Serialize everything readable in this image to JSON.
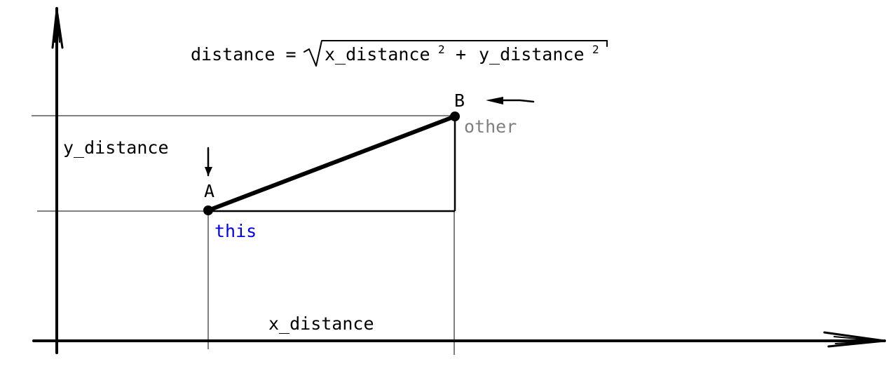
{
  "formula": {
    "lhs": "distance =",
    "term1": "x_distance",
    "exp1": "2",
    "operator": "+",
    "term2": "y_distance",
    "exp2": "2"
  },
  "labels": {
    "point_b": "B",
    "other": "other",
    "y_distance": "y_distance",
    "point_a": "A",
    "this": "this",
    "x_distance": "x_distance"
  },
  "colors": {
    "ink": "#000000",
    "this_label": "#0000ee",
    "other_label": "#7f7f7f"
  }
}
